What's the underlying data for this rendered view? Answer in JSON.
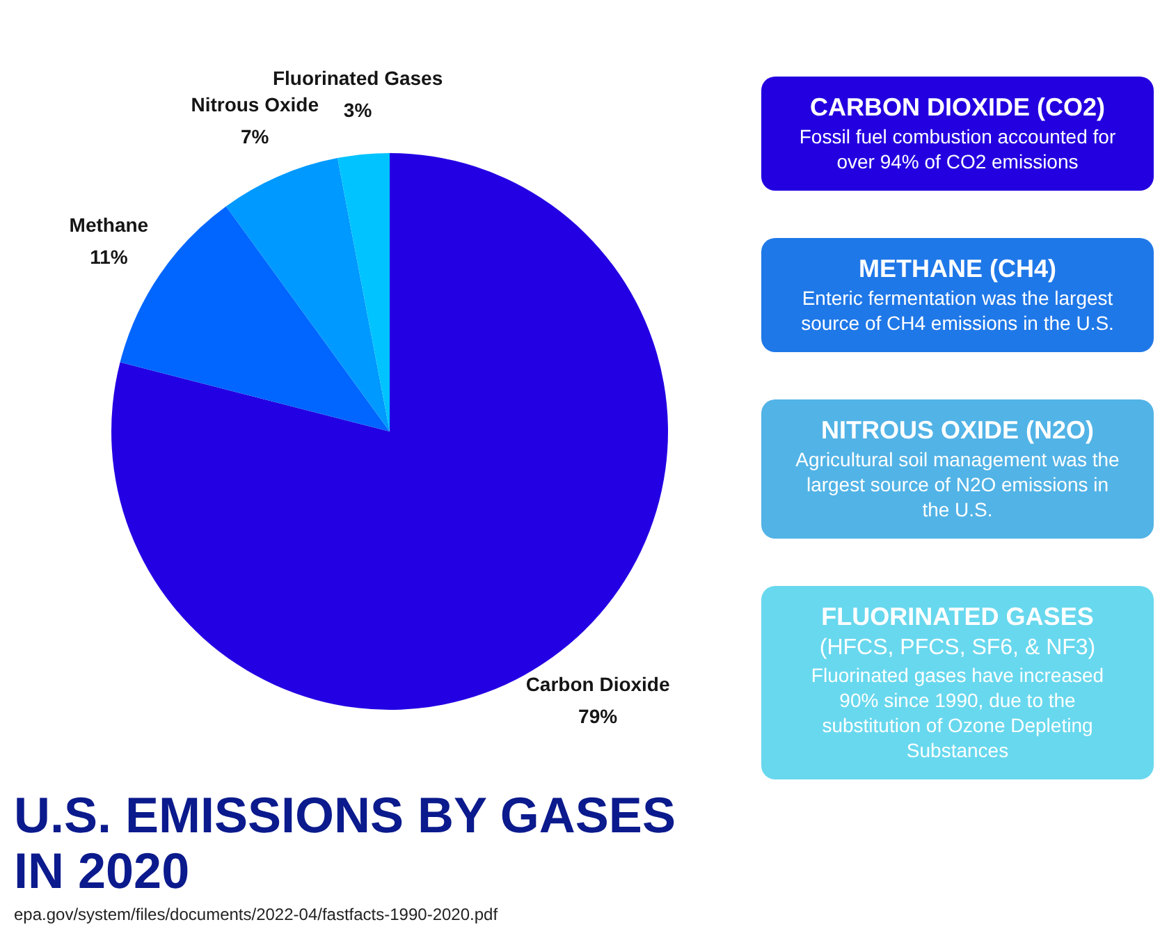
{
  "chart_data": {
    "type": "pie",
    "title": "U.S. EMISSIONS BY GASES IN 2020",
    "categories": [
      "Carbon Dioxide",
      "Methane",
      "Nitrous Oxide",
      "Fluorinated Gases"
    ],
    "values": [
      79,
      11,
      7,
      3
    ],
    "value_labels": [
      "79%",
      "11%",
      "7%",
      "3%"
    ],
    "colors": [
      "#2300e3",
      "#0066ff",
      "#0099ff",
      "#00c3ff"
    ],
    "annotations": [
      "CARBON DIOXIDE (CO2)\nFossil fuel combustion accounted for over 94% of CO2 emissions",
      "METHANE (CH4)\nEnteric fermentation was the largest source of CH4 emissions in the U.S.",
      "NITROUS OXIDE (N2O)\nAgricultural soil management was the largest source of N2O emissions in the U.S.",
      "FLUORINATED GASES\n(HFCS, PFCS, SF6, & NF3)\nFluorinated gases have increased 90% since 1990, due to the substitution of Ozone Depleting Substances",
      "epa.gov/system/files/documents/2022-04/fastfacts-1990-2020.pdf"
    ]
  }
}
